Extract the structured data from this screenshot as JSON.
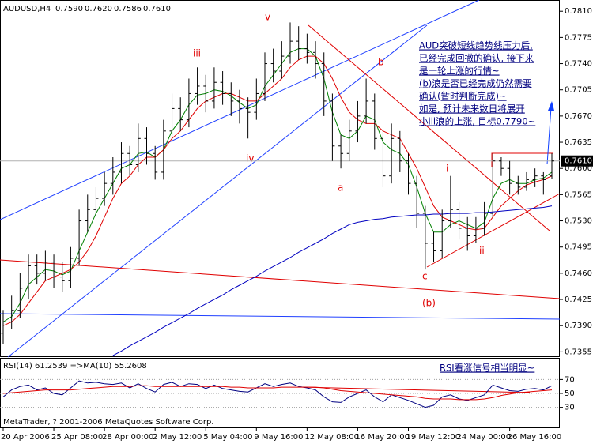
{
  "chart_data": [
    {
      "type": "ohlc",
      "title": "AUDUSD,H4",
      "ohlc_labels": [
        "0.7590",
        "0.7620",
        "0.7586",
        "0.7610"
      ],
      "categories": [
        "20 Apr 2006",
        null,
        null,
        null,
        null,
        null,
        "25 Apr 08:00",
        null,
        null,
        null,
        null,
        null,
        "28 Apr 00:00",
        null,
        null,
        null,
        null,
        null,
        "2 May 12:00",
        null,
        null,
        null,
        null,
        null,
        "5 May 04:00",
        null,
        null,
        null,
        null,
        null,
        "9 May 16:00",
        null,
        null,
        null,
        null,
        null,
        "12 May 08:00",
        null,
        null,
        null,
        null,
        null,
        "16 May 20:00",
        null,
        null,
        null,
        null,
        null,
        "19 May 12:00",
        null,
        null,
        null,
        null,
        null,
        "24 May 00:00",
        null,
        null,
        null,
        null,
        null,
        "26 May 16:00",
        null,
        null,
        null,
        null,
        null
      ],
      "open": [
        0.738,
        0.7395,
        0.741,
        0.744,
        0.747,
        0.746,
        0.7475,
        0.7455,
        0.745,
        0.748,
        0.753,
        0.7545,
        0.756,
        0.758,
        0.7595,
        0.762,
        0.7605,
        0.764,
        0.762,
        0.7595,
        0.765,
        0.768,
        0.7665,
        0.77,
        0.771,
        0.769,
        0.7715,
        0.77,
        0.769,
        0.768,
        0.7675,
        0.77,
        0.774,
        0.773,
        0.775,
        0.777,
        0.776,
        0.7755,
        0.774,
        0.769,
        0.763,
        0.762,
        0.765,
        0.767,
        0.769,
        0.764,
        0.759,
        0.764,
        0.761,
        0.758,
        0.754,
        0.75,
        0.749,
        0.753,
        0.7545,
        0.752,
        0.751,
        0.752,
        0.754,
        0.761,
        0.76,
        0.758,
        0.7575,
        0.7585,
        0.759,
        0.759
      ],
      "high": [
        0.741,
        0.743,
        0.746,
        0.7485,
        0.7485,
        0.749,
        0.7485,
        0.7475,
        0.7495,
        0.7545,
        0.7565,
        0.7575,
        0.7595,
        0.7615,
        0.7635,
        0.763,
        0.766,
        0.7655,
        0.763,
        0.7665,
        0.77,
        0.7695,
        0.772,
        0.7735,
        0.7725,
        0.7735,
        0.773,
        0.7715,
        0.7705,
        0.7695,
        0.772,
        0.7755,
        0.776,
        0.777,
        0.7795,
        0.779,
        0.778,
        0.777,
        0.7755,
        0.77,
        0.7645,
        0.7665,
        0.769,
        0.772,
        0.77,
        0.765,
        0.766,
        0.765,
        0.762,
        0.759,
        0.755,
        0.7515,
        0.7545,
        0.759,
        0.7555,
        0.7535,
        0.7535,
        0.7555,
        0.762,
        0.7615,
        0.761,
        0.759,
        0.7595,
        0.76,
        0.7595,
        0.762
      ],
      "low": [
        0.7365,
        0.7385,
        0.74,
        0.7425,
        0.7445,
        0.745,
        0.744,
        0.7435,
        0.744,
        0.747,
        0.7515,
        0.7535,
        0.755,
        0.7565,
        0.758,
        0.759,
        0.7595,
        0.7605,
        0.7585,
        0.7585,
        0.7635,
        0.765,
        0.7655,
        0.7685,
        0.7675,
        0.768,
        0.7685,
        0.767,
        0.766,
        0.764,
        0.7665,
        0.769,
        0.7715,
        0.772,
        0.774,
        0.7745,
        0.774,
        0.772,
        0.767,
        0.761,
        0.76,
        0.761,
        0.7635,
        0.766,
        0.7625,
        0.7575,
        0.758,
        0.7595,
        0.7565,
        0.752,
        0.7465,
        0.7475,
        0.748,
        0.752,
        0.7505,
        0.749,
        0.75,
        0.751,
        0.7535,
        0.759,
        0.7565,
        0.7565,
        0.757,
        0.7575,
        0.7565,
        0.7586
      ],
      "close": [
        0.7395,
        0.741,
        0.744,
        0.747,
        0.746,
        0.7475,
        0.7455,
        0.745,
        0.748,
        0.753,
        0.7545,
        0.756,
        0.758,
        0.7595,
        0.762,
        0.7605,
        0.764,
        0.762,
        0.7595,
        0.765,
        0.768,
        0.7665,
        0.77,
        0.771,
        0.769,
        0.7715,
        0.77,
        0.769,
        0.768,
        0.7675,
        0.77,
        0.774,
        0.773,
        0.775,
        0.777,
        0.776,
        0.7755,
        0.774,
        0.769,
        0.763,
        0.762,
        0.765,
        0.767,
        0.769,
        0.764,
        0.759,
        0.764,
        0.761,
        0.758,
        0.754,
        0.75,
        0.749,
        0.753,
        0.7545,
        0.752,
        0.751,
        0.752,
        0.754,
        0.761,
        0.76,
        0.758,
        0.7575,
        0.7585,
        0.759,
        0.7585,
        0.761
      ],
      "bar_color": "#000000",
      "moving_averages": [
        {
          "color": "#008000",
          "values": [
            0.7395,
            0.7402,
            0.742,
            0.7445,
            0.7455,
            0.7465,
            0.7463,
            0.7458,
            0.7463,
            0.749,
            0.7515,
            0.754,
            0.756,
            0.758,
            0.76,
            0.7605,
            0.762,
            0.7622,
            0.7615,
            0.7625,
            0.765,
            0.7665,
            0.7685,
            0.7698,
            0.77,
            0.7705,
            0.7703,
            0.7697,
            0.7688,
            0.768,
            0.7685,
            0.771,
            0.7725,
            0.774,
            0.7755,
            0.776,
            0.776,
            0.775,
            0.772,
            0.7675,
            0.7645,
            0.764,
            0.765,
            0.767,
            0.7665,
            0.7635,
            0.7625,
            0.762,
            0.7605,
            0.7575,
            0.754,
            0.7515,
            0.7515,
            0.7525,
            0.753,
            0.7525,
            0.752,
            0.7528,
            0.756,
            0.758,
            0.7585,
            0.758,
            0.758,
            0.7585,
            0.7587,
            0.7595
          ]
        },
        {
          "color": "#e00000",
          "values": [
            0.739,
            0.7395,
            0.7405,
            0.742,
            0.7435,
            0.745,
            0.7455,
            0.746,
            0.7465,
            0.7475,
            0.749,
            0.751,
            0.7535,
            0.756,
            0.758,
            0.759,
            0.7605,
            0.7615,
            0.7615,
            0.7625,
            0.764,
            0.765,
            0.7665,
            0.768,
            0.769,
            0.7695,
            0.77,
            0.77,
            0.7695,
            0.769,
            0.769,
            0.77,
            0.771,
            0.772,
            0.7735,
            0.7745,
            0.775,
            0.775,
            0.774,
            0.772,
            0.7695,
            0.7675,
            0.7665,
            0.766,
            0.766,
            0.765,
            0.7645,
            0.764,
            0.762,
            0.76,
            0.7575,
            0.755,
            0.7535,
            0.753,
            0.7525,
            0.752,
            0.7518,
            0.752,
            0.7535,
            0.755,
            0.756,
            0.757,
            0.7578,
            0.7582,
            0.7585,
            0.759
          ]
        },
        {
          "color": "#0000c0",
          "values": [
            null,
            null,
            null,
            null,
            null,
            null,
            null,
            null,
            null,
            null,
            null,
            null,
            null,
            0.735,
            0.7356,
            0.7363,
            0.7369,
            0.7375,
            0.7381,
            0.7388,
            0.7394,
            0.74,
            0.7406,
            0.7413,
            0.7419,
            0.7425,
            0.7431,
            0.7438,
            0.7444,
            0.745,
            0.7456,
            0.7463,
            0.7469,
            0.7475,
            0.7481,
            0.7488,
            0.7494,
            0.75,
            0.7506,
            0.7513,
            0.7519,
            0.7525,
            0.7528,
            0.753,
            0.7532,
            0.7533,
            0.7535,
            0.7536,
            0.7537,
            0.7538,
            0.7538,
            0.7539,
            0.7539,
            0.754,
            0.754,
            0.754,
            0.7541,
            0.7541,
            0.7542,
            0.7543,
            0.7544,
            0.7545,
            0.7546,
            0.7547,
            0.7548,
            0.755
          ]
        }
      ],
      "ylim": [
        0.7348,
        0.7825
      ],
      "yticks": [
        {
          "value": 0.781,
          "label": "0.7810"
        },
        {
          "value": 0.7775,
          "label": "0.7775"
        },
        {
          "value": 0.774,
          "label": "0.7740"
        },
        {
          "value": 0.7705,
          "label": "0.7705"
        },
        {
          "value": 0.767,
          "label": "0.7670"
        },
        {
          "value": 0.7635,
          "label": "0.7635"
        },
        {
          "value": 0.76,
          "label": "0.7600"
        },
        {
          "value": 0.7565,
          "label": "0.7565"
        },
        {
          "value": 0.753,
          "label": "0.7530"
        },
        {
          "value": 0.7495,
          "label": "0.7495"
        },
        {
          "value": 0.746,
          "label": "0.7460"
        },
        {
          "value": 0.7425,
          "label": "0.7425"
        },
        {
          "value": 0.739,
          "label": "0.7390"
        },
        {
          "value": 0.7355,
          "label": "0.7355"
        }
      ],
      "last_price": {
        "value": 0.761,
        "label": "0.7610"
      },
      "wave_labels": [
        "v",
        "iii",
        "iv",
        "b",
        "a",
        "i",
        "c",
        "ii",
        "(b)"
      ],
      "note_lines": [
        "AUD突破短线趋势线压力后,",
        "已经完成回撤的确认, 接下来",
        "是一轮上涨的行情~",
        "(b)浪是否已经完成仍然需要",
        "确认(暂时判断完成)~",
        "如是, 预计未来数日将展开",
        "小iii浪的上涨, 目标0.7790~"
      ]
    },
    {
      "type": "line",
      "title": "RSI(14) 61.2539 =>MA(10) 55.2608",
      "series": [
        {
          "color": "#000080",
          "values": [
            45,
            55,
            60,
            62,
            55,
            58,
            50,
            48,
            58,
            68,
            65,
            66,
            64,
            63,
            65,
            58,
            64,
            57,
            52,
            63,
            66,
            60,
            64,
            63,
            57,
            62,
            57,
            55,
            53,
            52,
            58,
            64,
            60,
            63,
            65,
            60,
            58,
            55,
            45,
            38,
            37,
            45,
            50,
            55,
            45,
            38,
            48,
            44,
            40,
            35,
            30,
            33,
            45,
            48,
            42,
            40,
            44,
            48,
            62,
            58,
            54,
            53,
            56,
            57,
            55,
            61
          ]
        },
        {
          "color": "#e00000",
          "values": [
            50,
            51,
            52,
            53,
            54,
            55,
            55,
            55,
            55,
            56,
            57,
            58,
            59,
            60,
            60,
            60,
            61,
            61,
            60,
            60,
            60,
            60,
            60,
            60,
            60,
            60,
            60,
            59,
            59,
            58,
            58,
            58,
            58,
            59,
            59,
            59,
            59,
            59,
            58,
            56,
            54,
            53,
            52,
            51,
            50,
            49,
            48,
            47,
            46,
            45,
            43,
            42,
            42,
            42,
            41,
            41,
            41,
            42,
            44,
            47,
            49,
            51,
            52,
            53,
            54,
            55
          ]
        }
      ],
      "ylim": [
        0,
        100
      ],
      "yticks": [
        70,
        50,
        30
      ],
      "note": "RSI看涨信号相当明显~",
      "footer": "MetaTrader, ? 2001-2006 MetaQuotes Software Corp."
    }
  ]
}
